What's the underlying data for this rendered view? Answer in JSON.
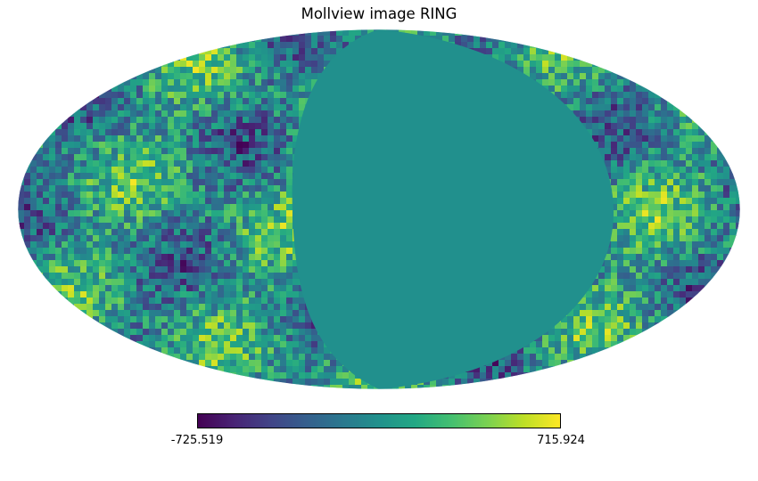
{
  "chart_data": {
    "type": "heatmap",
    "projection": "mollweide",
    "title": "Mollview image RING",
    "colormap": "viridis",
    "value_range": [
      -725.519,
      715.924
    ],
    "colorbar": {
      "min_label": "-725.519",
      "max_label": "715.924",
      "orientation": "horizontal",
      "placement": "bottom"
    },
    "masked_region": {
      "description": "uniform masked half-sky region",
      "value": 0,
      "color": "#21908d"
    }
  }
}
